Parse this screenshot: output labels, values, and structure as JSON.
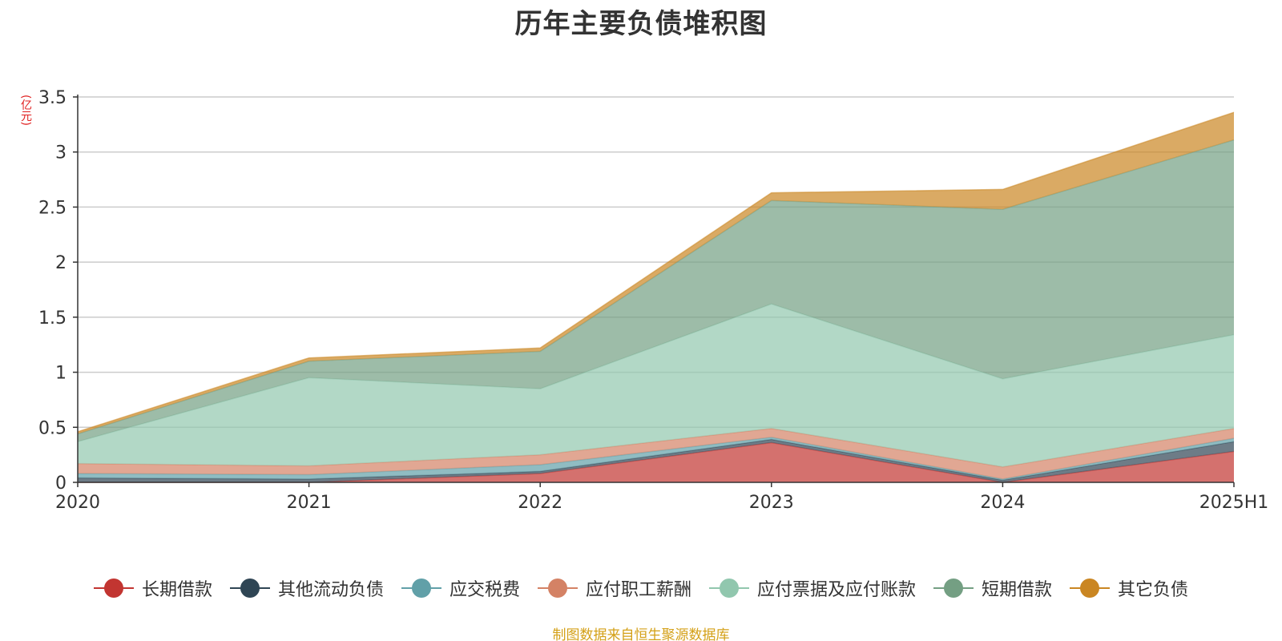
{
  "chart_data": {
    "type": "area",
    "title": "历年主要负债堆积图",
    "ylabel": "(亿元)",
    "xlabel": "",
    "stacked": true,
    "categories": [
      "2020",
      "2021",
      "2022",
      "2023",
      "2024",
      "2025H1"
    ],
    "ylim": [
      0,
      3.5
    ],
    "yticks": [
      "0",
      "0.5",
      "1",
      "1.5",
      "2",
      "2.5",
      "3",
      "3.5"
    ],
    "grid": true,
    "legend_position": "bottom",
    "series": [
      {
        "name": "长期借款",
        "color": "#c23531",
        "values": [
          0.0,
          0.0,
          0.08,
          0.36,
          0.0,
          0.28
        ]
      },
      {
        "name": "其他流动负债",
        "color": "#2f4554",
        "values": [
          0.04,
          0.03,
          0.02,
          0.03,
          0.02,
          0.09
        ]
      },
      {
        "name": "应交税费",
        "color": "#61a0a8",
        "values": [
          0.04,
          0.04,
          0.06,
          0.02,
          0.01,
          0.03
        ]
      },
      {
        "name": "应付职工薪酬",
        "color": "#d48265",
        "values": [
          0.09,
          0.08,
          0.09,
          0.08,
          0.11,
          0.09
        ]
      },
      {
        "name": "应付票据及应付账款",
        "color": "#91c7ae",
        "values": [
          0.2,
          0.8,
          0.6,
          1.13,
          0.8,
          0.85
        ]
      },
      {
        "name": "短期借款",
        "color": "#749f83",
        "values": [
          0.07,
          0.15,
          0.34,
          0.94,
          1.54,
          1.77
        ]
      },
      {
        "name": "其它负债",
        "color": "#ca8622",
        "values": [
          0.02,
          0.03,
          0.03,
          0.07,
          0.18,
          0.25
        ]
      }
    ],
    "source": "制图数据来自恒生聚源数据库"
  }
}
